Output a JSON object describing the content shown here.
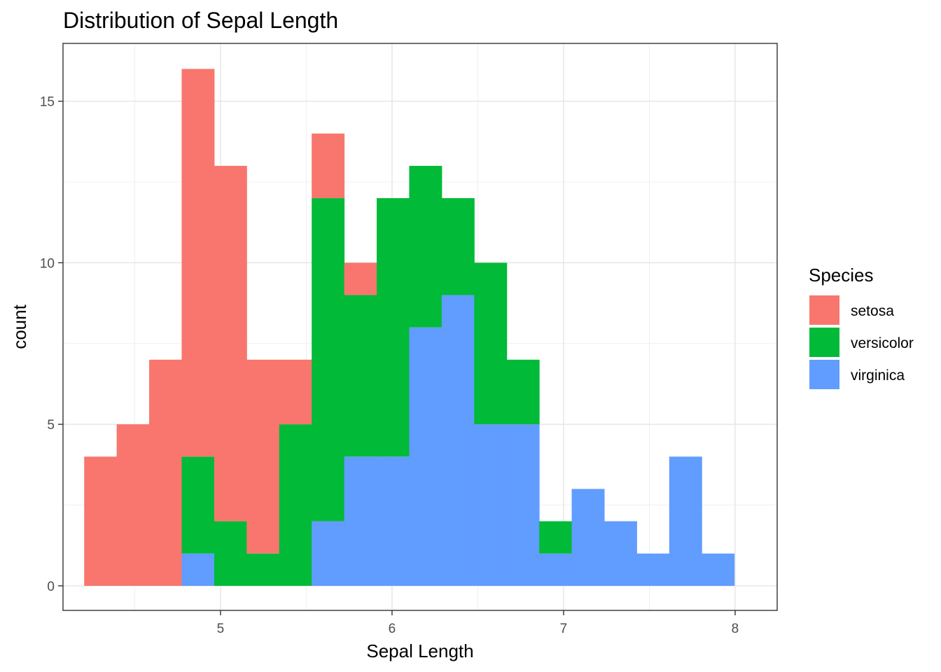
{
  "chart_data": {
    "type": "bar",
    "subtype": "stacked-histogram",
    "title": "Distribution of Sepal Length",
    "xlabel": "Sepal Length",
    "ylabel": "count",
    "xlim": [
      4.082,
      8.245
    ],
    "ylim": [
      -0.76,
      16.79
    ],
    "x_ticks": [
      5,
      6,
      7,
      8
    ],
    "x_tick_labels": [
      "5",
      "6",
      "7",
      "8"
    ],
    "y_ticks": [
      0,
      5,
      10,
      15
    ],
    "y_tick_labels": [
      "0",
      "5",
      "10",
      "15"
    ],
    "grid": true,
    "legend": {
      "title": "Species",
      "placement": "right"
    },
    "bin_start": 4.2053,
    "bin_width": 0.18947,
    "series": [
      {
        "name": "setosa",
        "color": "#F8766D",
        "values": [
          4,
          5,
          7,
          12,
          11,
          6,
          2,
          2,
          1,
          0,
          0,
          0,
          0,
          0,
          0,
          0,
          0,
          0,
          0,
          0
        ]
      },
      {
        "name": "versicolor",
        "color": "#00BA38",
        "values": [
          0,
          0,
          0,
          3,
          2,
          1,
          5,
          10,
          5,
          8,
          5,
          3,
          5,
          2,
          1,
          0,
          0,
          0,
          0,
          0
        ]
      },
      {
        "name": "virginica",
        "color": "#619CFF",
        "values": [
          0,
          0,
          0,
          1,
          0,
          0,
          0,
          2,
          4,
          4,
          8,
          9,
          5,
          5,
          1,
          3,
          2,
          1,
          4,
          1
        ]
      }
    ]
  }
}
